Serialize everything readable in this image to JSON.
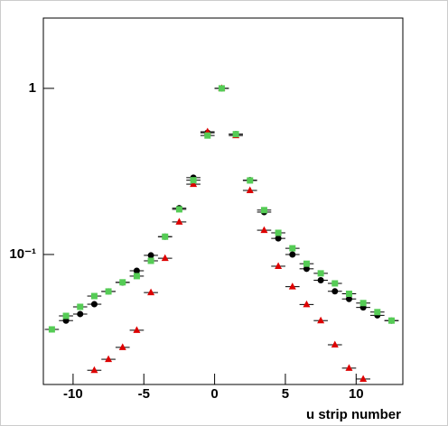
{
  "chart_data": {
    "type": "scatter",
    "x_label": "u strip number",
    "log_y": true,
    "xlim": [
      -12.1,
      13.3
    ],
    "ylim": [
      0.0165,
      2.65
    ],
    "xticks": [
      -10,
      -5,
      0,
      5,
      10
    ],
    "yticks": [
      {
        "value": 0.1,
        "label": "10⁻¹"
      },
      1
    ],
    "series": [
      {
        "name": "black",
        "color": "#000000",
        "marker": "circle",
        "x": [
          -10.5,
          -9.5,
          -8.5,
          -7.5,
          -6.5,
          -5.5,
          -4.5,
          -3.5,
          -2.5,
          -1.5,
          -0.5,
          0.5,
          1.5,
          2.5,
          3.5,
          4.5,
          5.5,
          6.5,
          7.5,
          8.5,
          9.5,
          10.5,
          11.5,
          12.5
        ],
        "values": [
          0.04,
          0.0438,
          0.0502,
          0.0599,
          0.0678,
          0.0798,
          0.0988,
          0.128,
          0.19,
          0.29,
          0.54,
          1.0,
          0.53,
          0.28,
          0.18,
          0.125,
          0.1,
          0.082,
          0.07,
          0.06,
          0.054,
          0.048,
          0.043,
          0.04
        ]
      },
      {
        "name": "red",
        "color": "#dd0000",
        "marker": "triangle",
        "x": [
          -8.5,
          -7.5,
          -6.5,
          -5.5,
          -4.5,
          -3.5,
          -2.5,
          -1.5,
          -0.5,
          0.5,
          1.5,
          2.5,
          3.5,
          4.5,
          5.5,
          6.5,
          7.5,
          8.5,
          9.5,
          10.5
        ],
        "values": [
          0.0201,
          0.0234,
          0.0276,
          0.035,
          0.059,
          0.095,
          0.157,
          0.265,
          0.548,
          1.0,
          0.52,
          0.243,
          0.14,
          0.085,
          0.064,
          0.05,
          0.04,
          0.0286,
          0.0207,
          0.0178
        ]
      },
      {
        "name": "green",
        "color": "#55cc55",
        "marker": "square",
        "x": [
          -11.5,
          -10.5,
          -9.5,
          -8.5,
          -7.5,
          -6.5,
          -5.5,
          -4.5,
          -3.5,
          -2.5,
          -1.5,
          -0.5,
          0.5,
          1.5,
          2.5,
          3.5,
          4.5,
          5.5,
          6.5,
          7.5,
          8.5,
          9.5,
          10.5,
          11.5,
          12.5
        ],
        "values": [
          0.0354,
          0.0427,
          0.0484,
          0.0562,
          0.0599,
          0.068,
          0.0741,
          0.0916,
          0.128,
          0.187,
          0.28,
          0.52,
          1.0,
          0.53,
          0.279,
          0.185,
          0.135,
          0.109,
          0.088,
          0.077,
          0.067,
          0.058,
          0.051,
          0.045,
          0.04
        ]
      }
    ]
  }
}
